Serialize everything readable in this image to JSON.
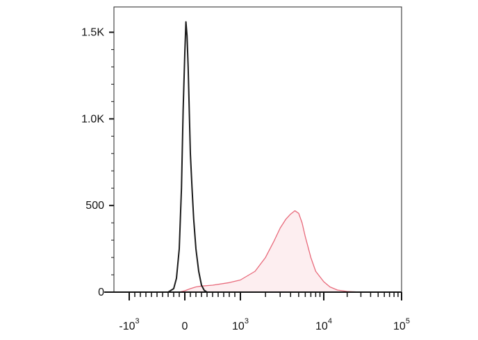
{
  "chart_data": {
    "type": "area",
    "title": "",
    "xlabel": "",
    "ylabel": "",
    "x_scale": "biexponential",
    "xlim": [
      -2000,
      100000
    ],
    "ylim": [
      0,
      1550
    ],
    "grid": false,
    "legend": "none",
    "y_ticks": [
      {
        "value": 0,
        "label": "0"
      },
      {
        "value": 500,
        "label": "500"
      },
      {
        "value": 1000,
        "label": "1.0K"
      },
      {
        "value": 1500,
        "label": "1.5K"
      }
    ],
    "x_ticks": [
      {
        "value": -1000,
        "base": "-10",
        "exp": "3"
      },
      {
        "value": 0,
        "base": "0",
        "exp": ""
      },
      {
        "value": 1000,
        "base": "10",
        "exp": "3"
      },
      {
        "value": 10000,
        "base": "10",
        "exp": "4"
      },
      {
        "value": 100000,
        "base": "10",
        "exp": "5"
      }
    ],
    "series": [
      {
        "color": "#1a1a1a",
        "fill": "none",
        "x": [
          -300,
          -200,
          -150,
          -100,
          -60,
          -30,
          0,
          20,
          40,
          60,
          80,
          100,
          130,
          160,
          200,
          250,
          300,
          350,
          400
        ],
        "y": [
          0,
          20,
          80,
          250,
          600,
          1050,
          1380,
          1560,
          1480,
          1300,
          1050,
          800,
          600,
          420,
          250,
          120,
          40,
          10,
          0
        ]
      },
      {
        "color": "#e8697a",
        "fill": "#fdeef0",
        "x": [
          -100,
          0,
          100,
          200,
          300,
          500,
          800,
          1000,
          1500,
          2000,
          2500,
          3000,
          3500,
          4000,
          4500,
          5000,
          5500,
          6000,
          7000,
          8000,
          10000,
          12000,
          15000,
          20000,
          30000
        ],
        "y": [
          0,
          8,
          20,
          30,
          35,
          40,
          55,
          70,
          120,
          200,
          290,
          370,
          420,
          450,
          470,
          455,
          400,
          320,
          200,
          120,
          60,
          30,
          12,
          4,
          0
        ]
      }
    ]
  }
}
